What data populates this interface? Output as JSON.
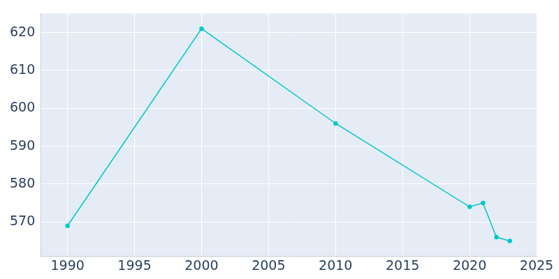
{
  "chart_data": {
    "type": "line",
    "x": [
      1990,
      2000,
      2010,
      2020,
      2021,
      2022,
      2023
    ],
    "values": [
      569,
      621,
      596,
      574,
      575,
      566,
      565
    ],
    "color": "#00c8c8",
    "marker": "circle",
    "xlim": [
      1988,
      2025
    ],
    "xticks": [
      1990,
      1995,
      2000,
      2005,
      2010,
      2015,
      2020,
      2025
    ],
    "ylim": [
      561,
      625
    ],
    "yticks": [
      570,
      580,
      590,
      600,
      610,
      620
    ],
    "grid": true
  }
}
